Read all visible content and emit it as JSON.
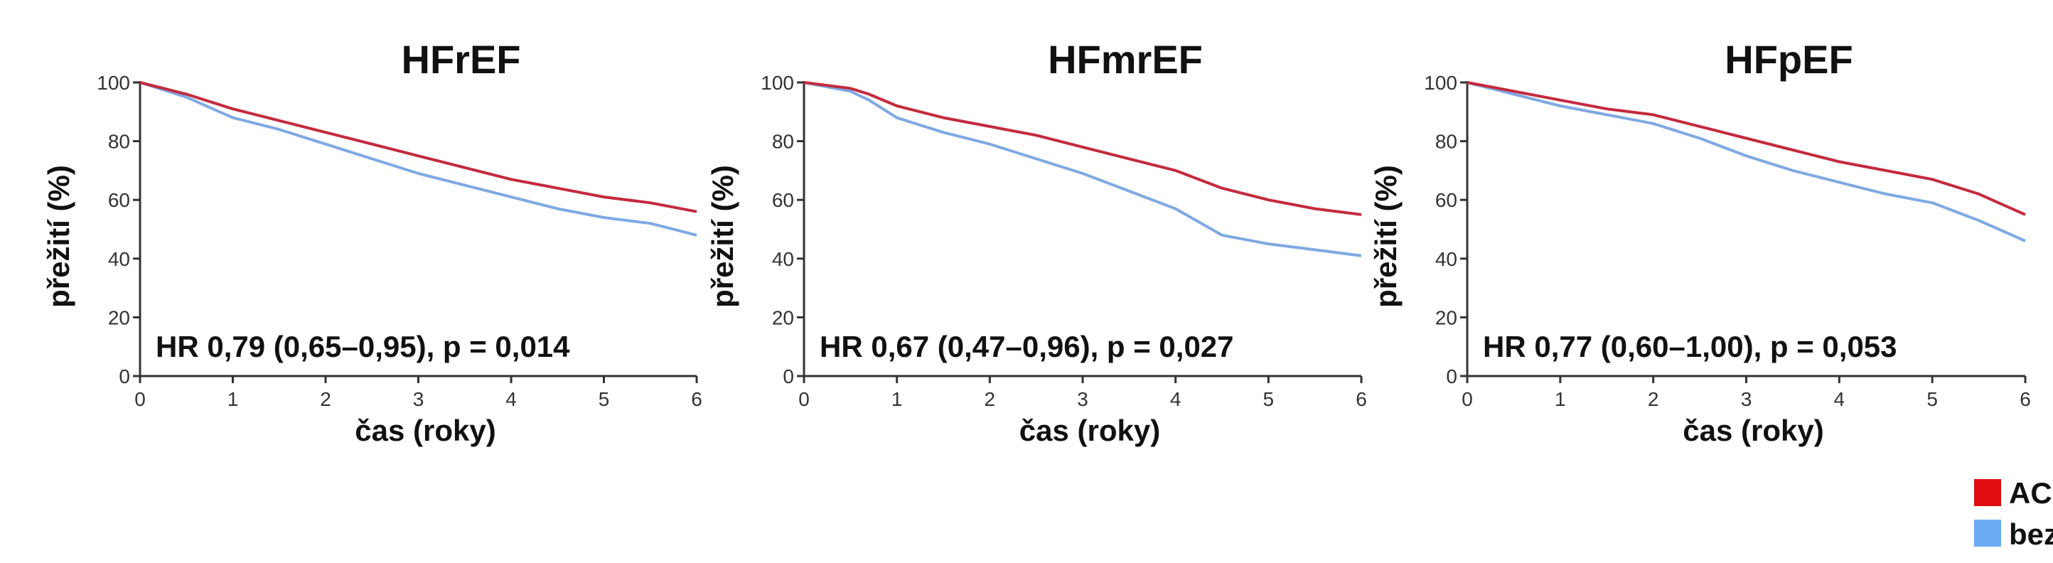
{
  "chart_data": [
    {
      "type": "line",
      "title": "HFrEF",
      "xlabel": "čas (roky)",
      "ylabel": "přežití (%)",
      "annotation": "HR 0,79 (0,65–0,95), p = 0,014",
      "xlim": [
        0,
        6
      ],
      "ylim": [
        0,
        100
      ],
      "xticks": [
        0,
        1,
        2,
        3,
        4,
        5,
        6
      ],
      "yticks": [
        0,
        20,
        40,
        60,
        80,
        100
      ],
      "grid": false,
      "series": [
        {
          "name": "ACEi/ARBs",
          "x": [
            0,
            0.5,
            1,
            1.5,
            2,
            2.5,
            3,
            3.5,
            4,
            4.5,
            5,
            5.5,
            6
          ],
          "y": [
            100,
            96,
            91,
            87,
            83,
            79,
            75,
            71,
            67,
            64,
            61,
            59,
            56
          ]
        },
        {
          "name": "bez ACEi/ARBs",
          "x": [
            0,
            0.5,
            1,
            1.5,
            2,
            2.5,
            3,
            3.5,
            4,
            4.5,
            5,
            5.5,
            6
          ],
          "y": [
            100,
            95,
            88,
            84,
            79,
            74,
            69,
            65,
            61,
            57,
            54,
            52,
            48
          ]
        }
      ]
    },
    {
      "type": "line",
      "title": "HFmrEF",
      "xlabel": "čas (roky)",
      "ylabel": "přežití (%)",
      "annotation": "HR 0,67 (0,47–0,96), p = 0,027",
      "xlim": [
        0,
        6
      ],
      "ylim": [
        0,
        100
      ],
      "xticks": [
        0,
        1,
        2,
        3,
        4,
        5,
        6
      ],
      "yticks": [
        0,
        20,
        40,
        60,
        80,
        100
      ],
      "grid": false,
      "series": [
        {
          "name": "ACEi/ARBs",
          "x": [
            0,
            0.5,
            0.7,
            1,
            1.5,
            2,
            2.5,
            3,
            3.5,
            4,
            4.5,
            5,
            5.5,
            6
          ],
          "y": [
            100,
            98,
            96,
            92,
            88,
            85,
            82,
            78,
            74,
            70,
            64,
            60,
            57,
            55
          ]
        },
        {
          "name": "bez ACEi/ARBs",
          "x": [
            0,
            0.5,
            0.7,
            1,
            1.5,
            2,
            2.5,
            3,
            3.5,
            4,
            4.5,
            5,
            5.5,
            6
          ],
          "y": [
            100,
            97,
            94,
            88,
            83,
            79,
            74,
            69,
            63,
            57,
            48,
            45,
            43,
            41
          ]
        }
      ]
    },
    {
      "type": "line",
      "title": "HFpEF",
      "xlabel": "čas (roky)",
      "ylabel": "přežití (%)",
      "annotation": "HR 0,77 (0,60–1,00), p = 0,053",
      "xlim": [
        0,
        6
      ],
      "ylim": [
        0,
        100
      ],
      "xticks": [
        0,
        1,
        2,
        3,
        4,
        5,
        6
      ],
      "yticks": [
        0,
        20,
        40,
        60,
        80,
        100
      ],
      "grid": false,
      "series": [
        {
          "name": "ACEi/ARBs",
          "x": [
            0,
            0.5,
            1,
            1.5,
            2,
            2.5,
            3,
            3.5,
            4,
            4.5,
            5,
            5.5,
            6
          ],
          "y": [
            100,
            97,
            94,
            91,
            89,
            85,
            81,
            77,
            73,
            70,
            67,
            62,
            55
          ]
        },
        {
          "name": "bez ACEi/ARBs",
          "x": [
            0,
            0.5,
            1,
            1.5,
            2,
            2.5,
            3,
            3.5,
            4,
            4.5,
            5,
            5.5,
            6
          ],
          "y": [
            100,
            96,
            92,
            89,
            86,
            81,
            75,
            70,
            66,
            62,
            59,
            53,
            46
          ]
        }
      ]
    }
  ],
  "legend": {
    "placement": "bottom-right",
    "items": [
      {
        "label": "ACEi/ARBs",
        "color": "#e00d12"
      },
      {
        "label": "bez ACEi/ARBs",
        "color": "#6aabf5"
      }
    ]
  },
  "colors": {
    "line_treated": "#c42a3e",
    "line_untreated": "#7fa9e3",
    "axis": "#333333"
  }
}
